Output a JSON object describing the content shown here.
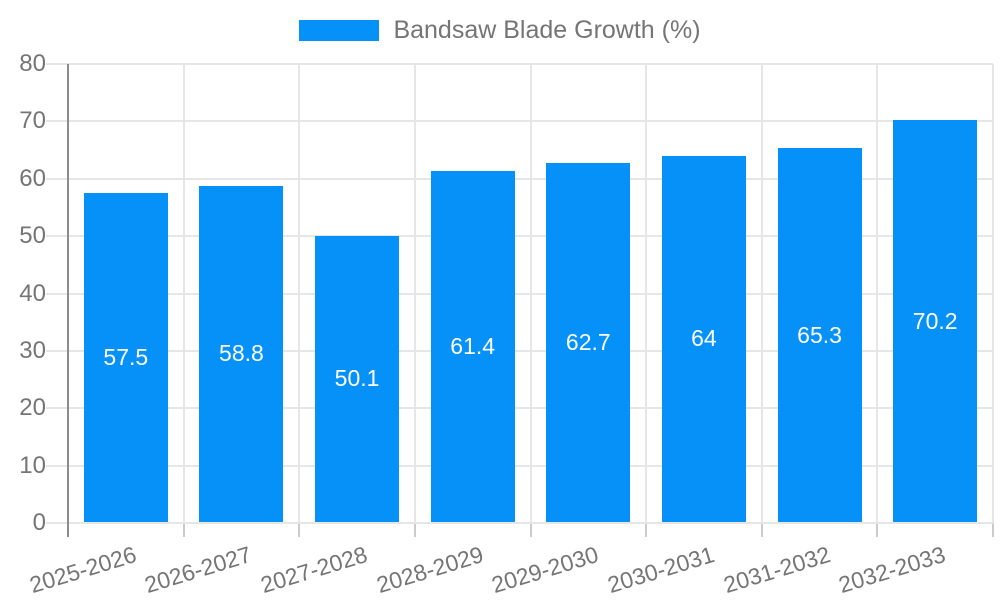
{
  "chart_data": {
    "type": "bar",
    "title": "Bandsaw Blade Growth (%)",
    "categories": [
      "2025-2026",
      "2026-2027",
      "2027-2028",
      "2028-2029",
      "2029-2030",
      "2030-2031",
      "2031-2032",
      "2032-2033"
    ],
    "values": [
      57.5,
      58.8,
      50.1,
      61.4,
      62.7,
      64,
      65.3,
      70.2
    ],
    "bar_labels": [
      "57.5",
      "58.8",
      "50.1",
      "61.4",
      "62.7",
      "64",
      "65.3",
      "70.2"
    ],
    "xlabel": "",
    "ylabel": "",
    "ylim": [
      0,
      80
    ],
    "yticks": [
      0,
      10,
      20,
      30,
      40,
      50,
      60,
      70,
      80
    ],
    "grid": "on",
    "legend_position": "top-center",
    "colors": {
      "bar": "#0691f8",
      "bar_label_text": "#ffffff",
      "gridline": "#e6e6e6",
      "axis_line": "#8c8c8c",
      "minor_tick": "#cccccc",
      "tick_text": "#757575",
      "legend_text": "#757575",
      "background": "#ffffff"
    }
  }
}
